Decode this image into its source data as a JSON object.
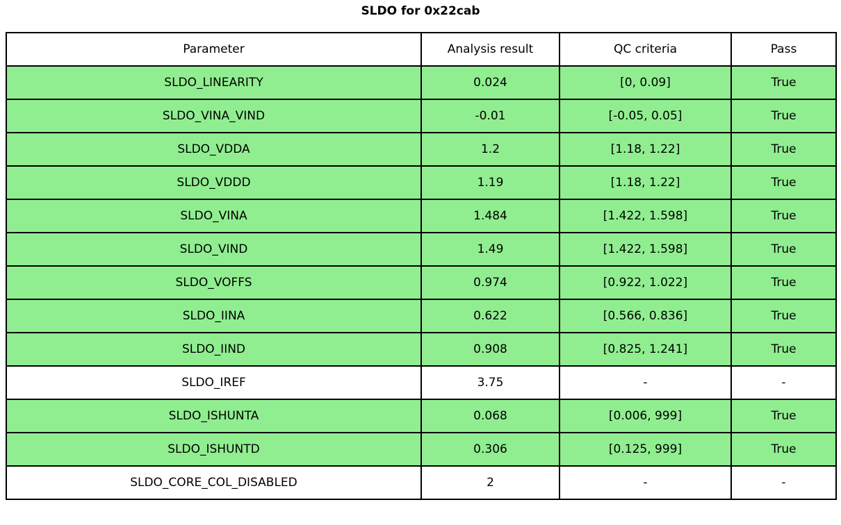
{
  "title": "SLDO for 0x22cab",
  "colors": {
    "pass_green": "#90ee90",
    "neutral_white": "#ffffff",
    "border_black": "#000000"
  },
  "table": {
    "headers": [
      "Parameter",
      "Analysis result",
      "QC criteria",
      "Pass"
    ],
    "rows": [
      {
        "parameter": "SLDO_LINEARITY",
        "result": "0.024",
        "criteria": "[0, 0.09]",
        "pass": "True",
        "highlighted": true
      },
      {
        "parameter": "SLDO_VINA_VIND",
        "result": "-0.01",
        "criteria": "[-0.05, 0.05]",
        "pass": "True",
        "highlighted": true
      },
      {
        "parameter": "SLDO_VDDA",
        "result": "1.2",
        "criteria": "[1.18, 1.22]",
        "pass": "True",
        "highlighted": true
      },
      {
        "parameter": "SLDO_VDDD",
        "result": "1.19",
        "criteria": "[1.18, 1.22]",
        "pass": "True",
        "highlighted": true
      },
      {
        "parameter": "SLDO_VINA",
        "result": "1.484",
        "criteria": "[1.422, 1.598]",
        "pass": "True",
        "highlighted": true
      },
      {
        "parameter": "SLDO_VIND",
        "result": "1.49",
        "criteria": "[1.422, 1.598]",
        "pass": "True",
        "highlighted": true
      },
      {
        "parameter": "SLDO_VOFFS",
        "result": "0.974",
        "criteria": "[0.922, 1.022]",
        "pass": "True",
        "highlighted": true
      },
      {
        "parameter": "SLDO_IINA",
        "result": "0.622",
        "criteria": "[0.566, 0.836]",
        "pass": "True",
        "highlighted": true
      },
      {
        "parameter": "SLDO_IIND",
        "result": "0.908",
        "criteria": "[0.825, 1.241]",
        "pass": "True",
        "highlighted": true
      },
      {
        "parameter": "SLDO_IREF",
        "result": "3.75",
        "criteria": "-",
        "pass": "-",
        "highlighted": false
      },
      {
        "parameter": "SLDO_ISHUNTA",
        "result": "0.068",
        "criteria": "[0.006, 999]",
        "pass": "True",
        "highlighted": true
      },
      {
        "parameter": "SLDO_ISHUNTD",
        "result": "0.306",
        "criteria": "[0.125, 999]",
        "pass": "True",
        "highlighted": true
      },
      {
        "parameter": "SLDO_CORE_COL_DISABLED",
        "result": "2",
        "criteria": "-",
        "pass": "-",
        "highlighted": false
      }
    ]
  },
  "chart_data": {
    "type": "table",
    "title": "SLDO for 0x22cab",
    "columns": [
      "Parameter",
      "Analysis result",
      "QC criteria",
      "Pass"
    ],
    "rows": [
      [
        "SLDO_LINEARITY",
        0.024,
        "[0, 0.09]",
        "True"
      ],
      [
        "SLDO_VINA_VIND",
        -0.01,
        "[-0.05, 0.05]",
        "True"
      ],
      [
        "SLDO_VDDA",
        1.2,
        "[1.18, 1.22]",
        "True"
      ],
      [
        "SLDO_VDDD",
        1.19,
        "[1.18, 1.22]",
        "True"
      ],
      [
        "SLDO_VINA",
        1.484,
        "[1.422, 1.598]",
        "True"
      ],
      [
        "SLDO_VIND",
        1.49,
        "[1.422, 1.598]",
        "True"
      ],
      [
        "SLDO_VOFFS",
        0.974,
        "[0.922, 1.022]",
        "True"
      ],
      [
        "SLDO_IINA",
        0.622,
        "[0.566, 0.836]",
        "True"
      ],
      [
        "SLDO_IIND",
        0.908,
        "[0.825, 1.241]",
        "True"
      ],
      [
        "SLDO_IREF",
        3.75,
        "-",
        "-"
      ],
      [
        "SLDO_ISHUNTA",
        0.068,
        "[0.006, 999]",
        "True"
      ],
      [
        "SLDO_ISHUNTD",
        0.306,
        "[0.125, 999]",
        "True"
      ],
      [
        "SLDO_CORE_COL_DISABLED",
        2,
        "-",
        "-"
      ]
    ],
    "layout_hints": {
      "row_highlight_color_pass": "#90ee90",
      "row_highlight_color_neutral": "#ffffff",
      "grid": true,
      "legend": false
    }
  }
}
